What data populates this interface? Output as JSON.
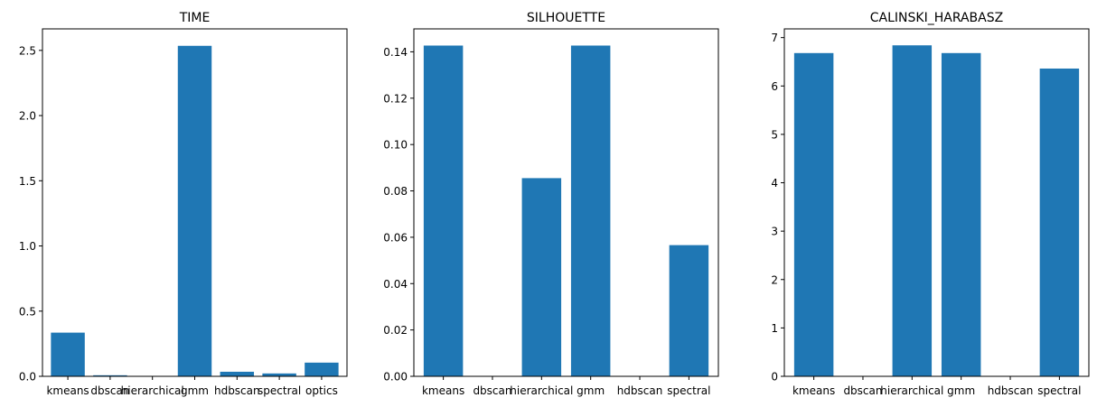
{
  "figure": {
    "bar_color": "#1f77b4"
  },
  "chart_data": [
    {
      "type": "bar",
      "title": "TIME",
      "categories": [
        "kmeans",
        "dbscan",
        "hierarchical",
        "gmm",
        "hdbscan",
        "spectral",
        "optics"
      ],
      "values": [
        0.335,
        0.008,
        0.002,
        2.535,
        0.035,
        0.022,
        0.105
      ],
      "yticks": [
        "0.0",
        "0.5",
        "1.0",
        "1.5",
        "2.0",
        "2.5"
      ],
      "ylim": [
        0,
        2.665
      ],
      "xlabel": "",
      "ylabel": "",
      "grid": false
    },
    {
      "type": "bar",
      "title": "SILHOUETTE",
      "categories": [
        "kmeans",
        "dbscan",
        "hierarchical",
        "gmm",
        "hdbscan",
        "spectral"
      ],
      "values": [
        0.1427,
        0,
        0.0855,
        0.1427,
        0,
        0.0566
      ],
      "yticks": [
        "0.00",
        "0.02",
        "0.04",
        "0.06",
        "0.08",
        "0.10",
        "0.12",
        "0.14"
      ],
      "ylim": [
        0,
        0.1499
      ],
      "xlabel": "",
      "ylabel": "",
      "grid": false
    },
    {
      "type": "bar",
      "title": "CALINSKI_HARABASZ",
      "categories": [
        "kmeans",
        "dbscan",
        "hierarchical",
        "gmm",
        "hdbscan",
        "spectral"
      ],
      "values": [
        6.68,
        0,
        6.84,
        6.68,
        0,
        6.36
      ],
      "yticks": [
        "0",
        "1",
        "2",
        "3",
        "4",
        "5",
        "6",
        "7"
      ],
      "ylim": [
        0,
        7.18
      ],
      "xlabel": "",
      "ylabel": "",
      "grid": false
    }
  ]
}
